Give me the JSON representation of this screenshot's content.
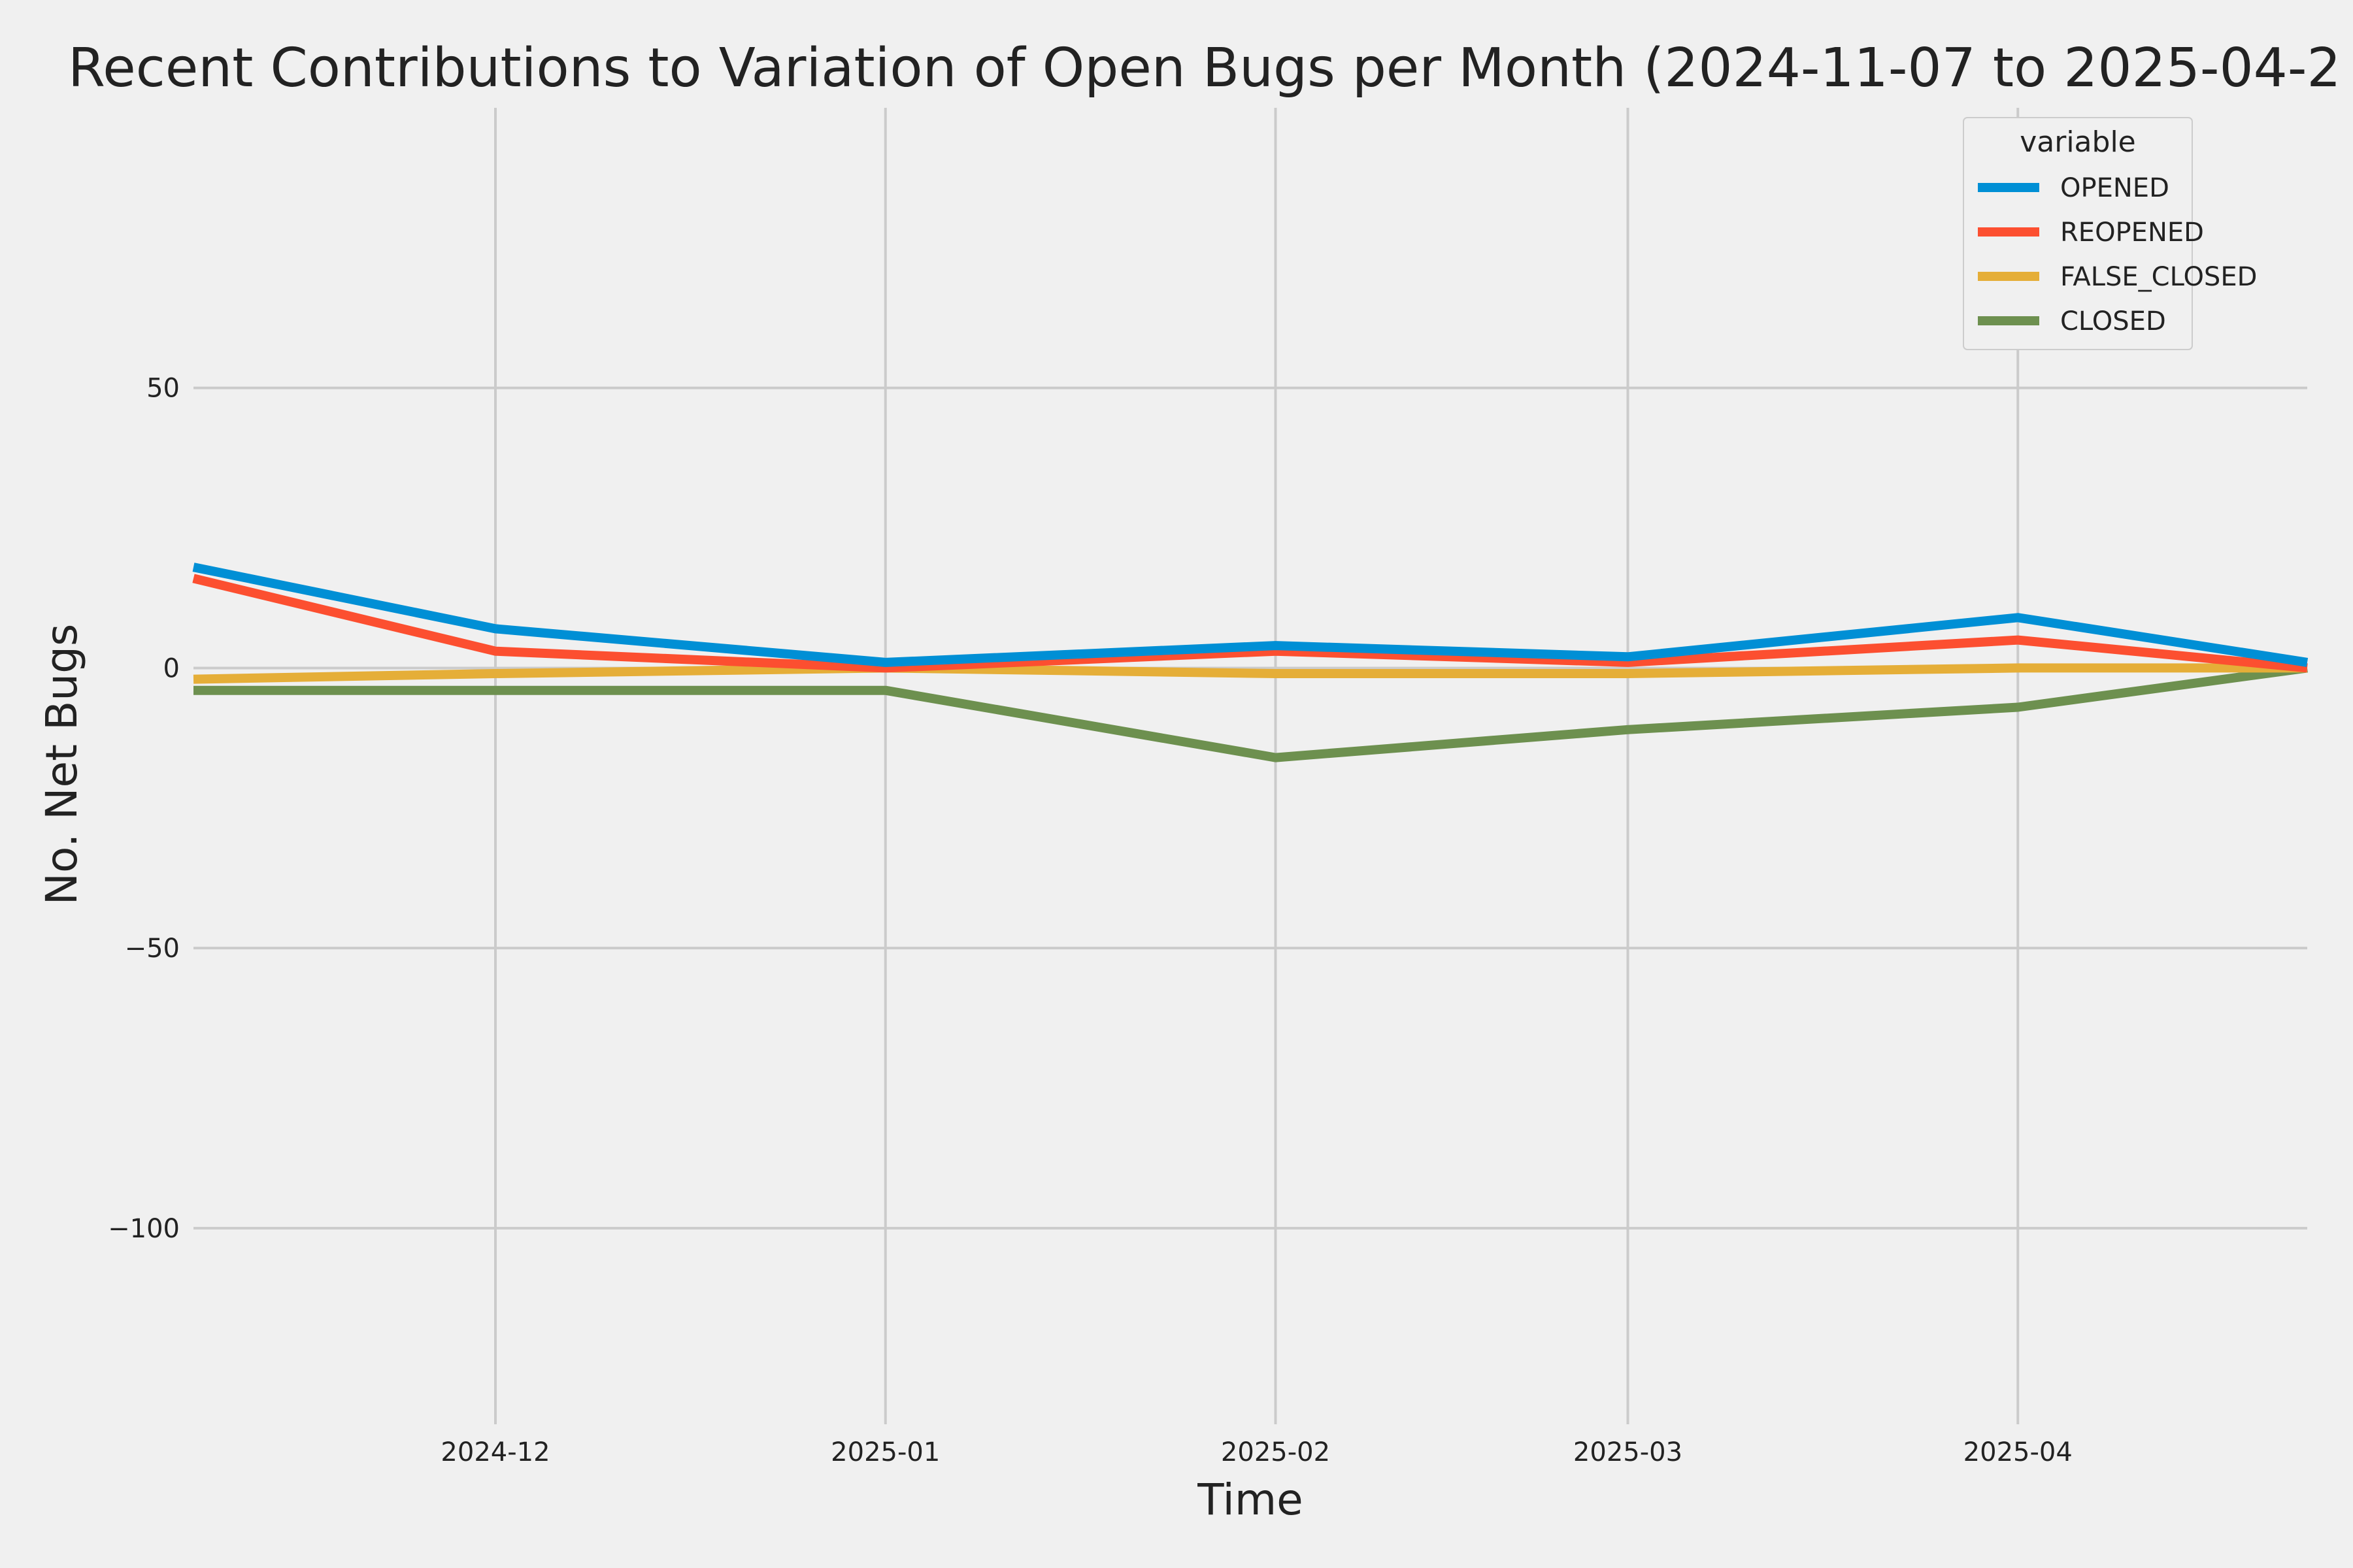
{
  "chart_data": {
    "type": "line",
    "title": "Recent Contributions to Variation of Open Bugs per Month (2024-11-07 to 2025-04-2",
    "xlabel": "Time",
    "ylabel": "No. Net Bugs",
    "x": [
      "2024-11-07",
      "2024-12-01",
      "2025-01-01",
      "2025-02-01",
      "2025-03-01",
      "2025-04-01",
      "2025-04-24"
    ],
    "x_range": [
      "2024-11-07",
      "2025-04-24"
    ],
    "x_ticks": [
      "2024-12-01",
      "2025-01-01",
      "2025-02-01",
      "2025-03-01",
      "2025-04-01"
    ],
    "x_tick_labels": [
      "2024-12",
      "2025-01",
      "2025-02",
      "2025-03",
      "2025-04"
    ],
    "ylim": [
      -135,
      100
    ],
    "y_ticks": [
      50,
      0,
      -50,
      -100
    ],
    "y_tick_labels": [
      "50",
      "0",
      "−50",
      "−100"
    ],
    "grid": true,
    "legend": {
      "title": "variable",
      "placement": "top-right"
    },
    "series": [
      {
        "name": "OPENED",
        "color": "#008fd5",
        "values": [
          18,
          7,
          1,
          4,
          2,
          9,
          1
        ]
      },
      {
        "name": "REOPENED",
        "color": "#fc4f30",
        "values": [
          16,
          3,
          0,
          3,
          1,
          5,
          0
        ]
      },
      {
        "name": "FALSE_CLOSED",
        "color": "#e5ae38",
        "values": [
          -2,
          -1,
          0,
          -1,
          -1,
          0,
          0
        ]
      },
      {
        "name": "CLOSED",
        "color": "#6d904f",
        "values": [
          -4,
          -4,
          -4,
          -16,
          -11,
          -7,
          0
        ]
      }
    ],
    "background_color": "#f0f0f0",
    "grid_color": "#cbcbcb"
  }
}
